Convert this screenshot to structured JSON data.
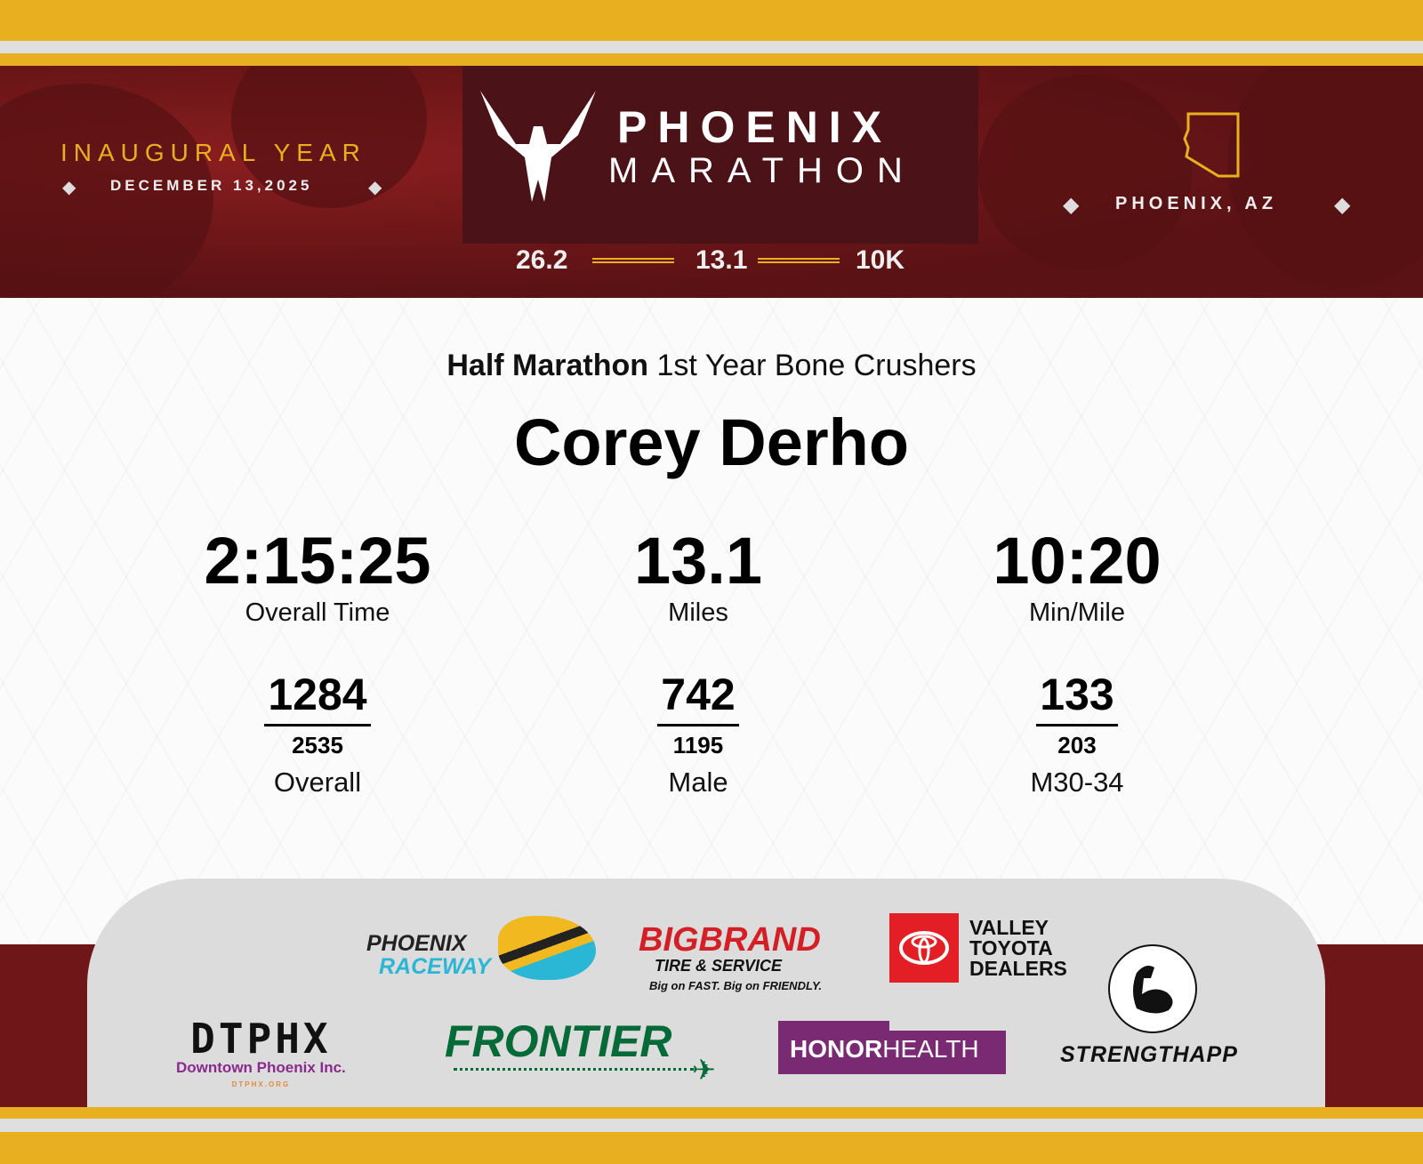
{
  "header": {
    "inaugural": "INAUGURAL YEAR",
    "date": "DECEMBER 13,2025",
    "title_line1": "PHOENIX",
    "title_line2": "MARATHON",
    "location": "PHOENIX, AZ",
    "distances": [
      "26.2",
      "13.1",
      "10K"
    ]
  },
  "result": {
    "event": "Half Marathon",
    "team": "1st Year Bone Crushers",
    "name": "Corey Derho",
    "stats": [
      {
        "value": "2:15:25",
        "label": "Overall Time"
      },
      {
        "value": "13.1",
        "label": "Miles"
      },
      {
        "value": "10:20",
        "label": "Min/Mile"
      }
    ],
    "ranks": [
      {
        "place": "1284",
        "total": "2535",
        "label": "Overall"
      },
      {
        "place": "742",
        "total": "1195",
        "label": "Male"
      },
      {
        "place": "133",
        "total": "203",
        "label": "M30-34"
      }
    ]
  },
  "sponsors": {
    "raceway": [
      "PHOENIX",
      "RACEWAY"
    ],
    "bigbrand": [
      "BIGBRAND",
      "TIRE & SERVICE",
      "Big on FAST. Big on FRIENDLY."
    ],
    "toyota": [
      "VALLEY",
      "TOYOTA",
      "DEALERS"
    ],
    "dtphx": [
      "DTPHX",
      "Downtown Phoenix Inc.",
      "DTPHX.ORG"
    ],
    "frontier": "FRONTIER",
    "honor": [
      "HONOR",
      "HEALTH"
    ],
    "strength": "STRENGTHAPP"
  },
  "colors": {
    "gold": "#e8b021",
    "maroon": "#6e1618",
    "dark": "#4b1217"
  }
}
